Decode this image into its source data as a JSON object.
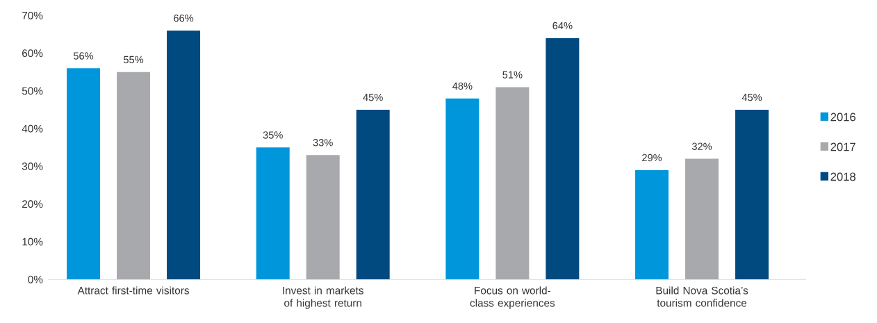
{
  "chart_data": {
    "type": "bar",
    "categories": [
      "Attract first-time visitors",
      "Invest in markets of highest return",
      "Focus on world-class experiences",
      "Build Nova Scotia’s tourism confidence"
    ],
    "series": [
      {
        "name": "2016",
        "color": "#0096dc",
        "values": [
          56,
          35,
          48,
          29
        ],
        "value_labels": [
          "56%",
          "35%",
          "48%",
          "29%"
        ]
      },
      {
        "name": "2017",
        "color": "#a7a9ac",
        "values": [
          55,
          33,
          51,
          32
        ],
        "value_labels": [
          "55%",
          "33%",
          "51%",
          "32%"
        ]
      },
      {
        "name": "2018",
        "color": "#004a80",
        "values": [
          66,
          45,
          64,
          45
        ],
        "value_labels": [
          "66%",
          "45%",
          "64%",
          "45%"
        ]
      }
    ],
    "ylim": [
      0,
      70
    ],
    "yticks": [
      {
        "value": 0,
        "label": "0%"
      },
      {
        "value": 10,
        "label": "10%"
      },
      {
        "value": 20,
        "label": "20%"
      },
      {
        "value": 30,
        "label": "30%"
      },
      {
        "value": 40,
        "label": "40%"
      },
      {
        "value": 50,
        "label": "50%"
      },
      {
        "value": 60,
        "label": "60%"
      },
      {
        "value": 70,
        "label": "70%"
      }
    ],
    "legend": "right"
  }
}
